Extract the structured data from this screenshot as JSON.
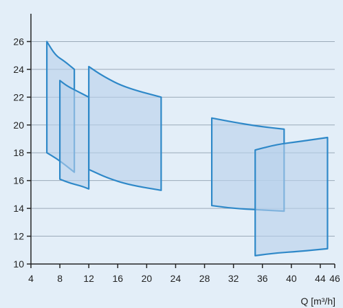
{
  "chart_data": {
    "type": "area",
    "xlabel": "Q [m³/h]",
    "ylabel": "",
    "xlim": [
      4,
      46
    ],
    "ylim": [
      10,
      28
    ],
    "xticks": [
      4,
      8,
      12,
      16,
      20,
      24,
      28,
      32,
      36,
      40,
      44,
      46
    ],
    "yticks": [
      10,
      12,
      14,
      16,
      18,
      20,
      22,
      24,
      26
    ],
    "grid": "horizontal",
    "colors": {
      "fill": "#b8d0eb",
      "stroke": "#2e88c8",
      "grid": "#9aa9b8",
      "axis": "#222222",
      "background": "#e3eef8"
    },
    "series": [
      {
        "top": [
          [
            6.2,
            26.0
          ],
          [
            7.4,
            25.0
          ],
          [
            8.6,
            24.6
          ],
          [
            10.0,
            24.0
          ]
        ],
        "bottom": [
          [
            6.2,
            18.0
          ],
          [
            7.5,
            17.6
          ],
          [
            8.8,
            17.1
          ],
          [
            10.0,
            16.6
          ]
        ]
      },
      {
        "top": [
          [
            8.0,
            23.2
          ],
          [
            9.0,
            22.8
          ],
          [
            10.5,
            22.4
          ],
          [
            12.0,
            22.0
          ]
        ],
        "bottom": [
          [
            8.0,
            16.1
          ],
          [
            9.5,
            15.8
          ],
          [
            11.0,
            15.6
          ],
          [
            12.0,
            15.4
          ]
        ]
      },
      {
        "top": [
          [
            12.0,
            24.2
          ],
          [
            14.0,
            23.5
          ],
          [
            17.0,
            22.7
          ],
          [
            22.0,
            22.0
          ]
        ],
        "bottom": [
          [
            12.0,
            16.8
          ],
          [
            14.5,
            16.2
          ],
          [
            17.5,
            15.7
          ],
          [
            22.0,
            15.3
          ]
        ]
      },
      {
        "top": [
          [
            29.0,
            20.5
          ],
          [
            32.0,
            20.2
          ],
          [
            35.5,
            19.9
          ],
          [
            39.0,
            19.7
          ]
        ],
        "bottom": [
          [
            29.0,
            14.2
          ],
          [
            32.0,
            14.0
          ],
          [
            35.5,
            13.9
          ],
          [
            39.0,
            13.8
          ]
        ]
      },
      {
        "top": [
          [
            35.0,
            18.2
          ],
          [
            38.0,
            18.6
          ],
          [
            41.0,
            18.8
          ],
          [
            45.0,
            19.1
          ]
        ],
        "bottom": [
          [
            35.0,
            10.6
          ],
          [
            38.0,
            10.8
          ],
          [
            41.0,
            10.9
          ],
          [
            45.0,
            11.1
          ]
        ]
      }
    ]
  }
}
